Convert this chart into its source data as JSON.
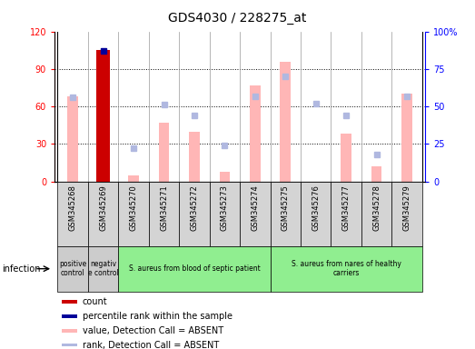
{
  "title": "GDS4030 / 228275_at",
  "samples": [
    "GSM345268",
    "GSM345269",
    "GSM345270",
    "GSM345271",
    "GSM345272",
    "GSM345273",
    "GSM345274",
    "GSM345275",
    "GSM345276",
    "GSM345277",
    "GSM345278",
    "GSM345279"
  ],
  "count_values": [
    null,
    105,
    null,
    null,
    null,
    null,
    null,
    null,
    null,
    null,
    null,
    null
  ],
  "percentile_rank": [
    null,
    87,
    null,
    null,
    null,
    null,
    null,
    null,
    null,
    null,
    null,
    null
  ],
  "absent_value": [
    68,
    null,
    5,
    47,
    40,
    8,
    77,
    96,
    null,
    38,
    12,
    70
  ],
  "absent_rank_pct": [
    56,
    null,
    22,
    51,
    44,
    24,
    57,
    70,
    52,
    44,
    18,
    57
  ],
  "ylim_left": [
    0,
    120
  ],
  "ylim_right": [
    0,
    100
  ],
  "yticks_left": [
    0,
    30,
    60,
    90,
    120
  ],
  "yticks_right": [
    0,
    25,
    50,
    75,
    100
  ],
  "ytick_labels_right": [
    "0",
    "25",
    "50",
    "75",
    "100%"
  ],
  "groups": [
    {
      "label": "positive\ncontrol",
      "start": 0,
      "end": 1,
      "color": "#cccccc"
    },
    {
      "label": "negativ\ne control",
      "start": 1,
      "end": 2,
      "color": "#cccccc"
    },
    {
      "label": "S. aureus from blood of septic patient",
      "start": 2,
      "end": 7,
      "color": "#90ee90"
    },
    {
      "label": "S. aureus from nares of healthy\ncarriers",
      "start": 7,
      "end": 12,
      "color": "#90ee90"
    }
  ],
  "infection_label": "infection",
  "absent_bar_color": "#ffb6b6",
  "absent_rank_color": "#b0b8e0",
  "count_bar_color": "#cc0000",
  "percentile_color": "#000099",
  "sample_bg_color": "#d4d4d4",
  "legend": [
    {
      "label": "count",
      "color": "#cc0000"
    },
    {
      "label": "percentile rank within the sample",
      "color": "#000099"
    },
    {
      "label": "value, Detection Call = ABSENT",
      "color": "#ffb6b6"
    },
    {
      "label": "rank, Detection Call = ABSENT",
      "color": "#b0b8e0"
    }
  ]
}
